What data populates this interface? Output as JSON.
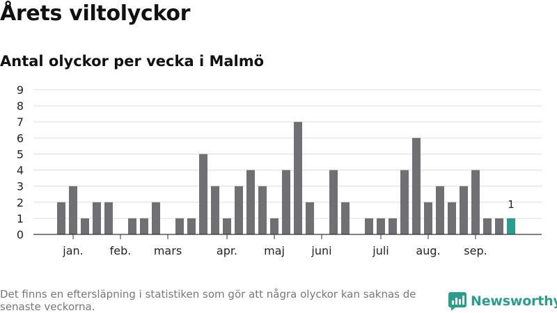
{
  "title": "Årets viltolyckor",
  "subtitle": "Antal olyckor per vecka i Malmö",
  "footnote": "Det finns en eftersläpning i statistiken som gör att några olyckor kan saknas de senaste veckorna.",
  "brand": {
    "name": "Newsworthy",
    "color": "#2a9d8f",
    "logo_icon": "newsworthy-logo-icon"
  },
  "chart_data": {
    "type": "bar",
    "title": "Årets viltolyckor",
    "subtitle": "Antal olyckor per vecka i Malmö",
    "xlabel": "",
    "ylabel": "",
    "ylim": [
      0,
      9
    ],
    "yticks": [
      0,
      1,
      2,
      3,
      4,
      5,
      6,
      7,
      8,
      9
    ],
    "grid": true,
    "x": [
      1,
      2,
      3,
      4,
      5,
      6,
      7,
      8,
      9,
      10,
      11,
      12,
      13,
      14,
      15,
      16,
      17,
      18,
      19,
      20,
      21,
      22,
      23,
      24,
      25,
      26,
      27,
      28,
      29,
      30,
      31,
      32,
      33,
      34,
      35,
      36,
      37,
      38,
      39,
      40
    ],
    "values": [
      0,
      2,
      3,
      1,
      2,
      2,
      0,
      1,
      1,
      2,
      0,
      1,
      1,
      5,
      3,
      1,
      3,
      4,
      3,
      1,
      4,
      7,
      2,
      0,
      4,
      2,
      0,
      1,
      1,
      1,
      4,
      6,
      2,
      3,
      2,
      3,
      4,
      1,
      1,
      1
    ],
    "month_labels": [
      {
        "label": "jan.",
        "week": 3
      },
      {
        "label": "feb.",
        "week": 7
      },
      {
        "label": "mars",
        "week": 11
      },
      {
        "label": "apr.",
        "week": 16
      },
      {
        "label": "maj",
        "week": 20
      },
      {
        "label": "juni",
        "week": 24
      },
      {
        "label": "juli",
        "week": 29
      },
      {
        "label": "aug.",
        "week": 33
      },
      {
        "label": "sep.",
        "week": 37
      }
    ],
    "highlight": {
      "week": 40,
      "value": 1,
      "label": "1"
    },
    "colors": {
      "bar": "#707074",
      "highlight": "#2a9d8f",
      "grid": "#dddddd",
      "axis": "#333333"
    }
  }
}
